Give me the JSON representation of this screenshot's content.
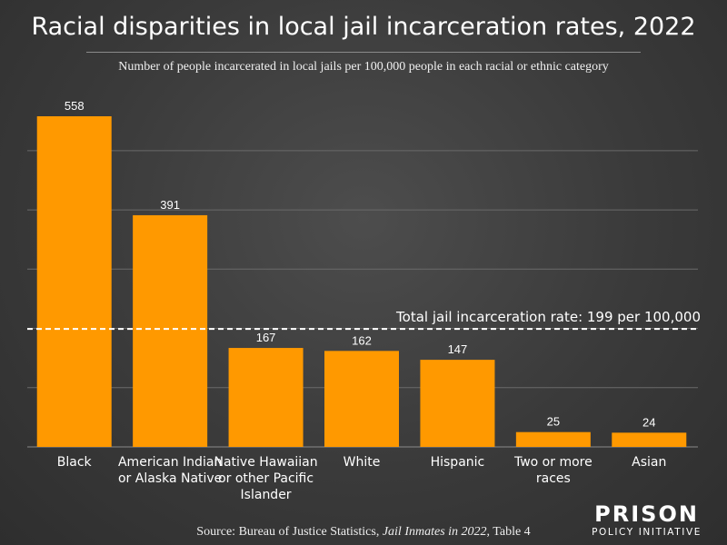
{
  "title": "Racial disparities in local jail incarceration rates, 2022",
  "subtitle": "Number of people incarcerated in local jails per 100,000 people in each racial or ethnic category",
  "source": {
    "prefix": "Source: Bureau of Justice Statistics, ",
    "italic": "Jail Inmates in 2022",
    "suffix": ", Table 4"
  },
  "logo": {
    "line1": "PRISON",
    "line2": "POLICY INITIATIVE"
  },
  "colors": {
    "bar": "#ff9900",
    "background": "#3a3a3a",
    "text": "#ffffff",
    "grid": "#6a6a6a"
  },
  "chart_data": {
    "type": "bar",
    "categories": [
      [
        "Black"
      ],
      [
        "American Indian",
        "or Alaska Native"
      ],
      [
        "Native Hawaiian",
        "or other Pacific",
        "Islander"
      ],
      [
        "White"
      ],
      [
        "Hispanic"
      ],
      [
        "Two or more",
        "races"
      ],
      [
        "Asian"
      ]
    ],
    "values": [
      558,
      391,
      167,
      162,
      147,
      25,
      24
    ],
    "ylim": [
      0,
      600
    ],
    "yticks": [
      100,
      200,
      300,
      400,
      500
    ],
    "grid": true,
    "reference_line": {
      "value": 199,
      "label": "Total jail incarceration rate: 199 per 100,000"
    }
  }
}
